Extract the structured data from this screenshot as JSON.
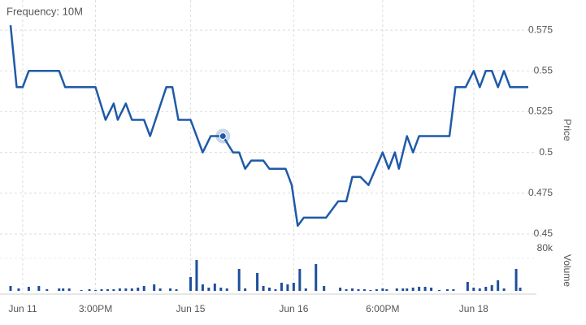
{
  "chart_data": [
    {
      "type": "line",
      "title": "Frequency: 10M",
      "y_label": "Price",
      "color": "#1f5aa8",
      "xlim": [
        0,
        128
      ],
      "ylim": [
        0.444,
        0.5875
      ],
      "yticks": [
        0.45,
        0.475,
        0.5,
        0.525,
        0.55,
        0.575
      ],
      "grid": true,
      "highlight_index": 21,
      "series": [
        {
          "name": "Price",
          "color": "#1f5aa8",
          "x": [
            0,
            1.5,
            3,
            4.5,
            12,
            13.5,
            21,
            23.5,
            25.5,
            26.5,
            28.5,
            30,
            33,
            34.5,
            38.5,
            40,
            41.5,
            44.5,
            47.5,
            49.5,
            52.5,
            52.5,
            55,
            56.5,
            58,
            59.5,
            62.5,
            64,
            68,
            69.5,
            71,
            72.5,
            78,
            81,
            83,
            84.5,
            86.5,
            88.5,
            92,
            93.5,
            95,
            96,
            98,
            99.5,
            101,
            108.5,
            110,
            112.5,
            114.5,
            116,
            117.5,
            119,
            120.5,
            122,
            123.5,
            128
          ],
          "values": [
            0.578,
            0.54,
            0.54,
            0.55,
            0.55,
            0.54,
            0.54,
            0.52,
            0.53,
            0.52,
            0.53,
            0.52,
            0.52,
            0.51,
            0.54,
            0.54,
            0.52,
            0.52,
            0.5,
            0.51,
            0.51,
            0.51,
            0.5,
            0.5,
            0.49,
            0.495,
            0.495,
            0.49,
            0.49,
            0.48,
            0.455,
            0.46,
            0.46,
            0.47,
            0.47,
            0.485,
            0.485,
            0.48,
            0.5,
            0.49,
            0.5,
            0.49,
            0.51,
            0.5,
            0.51,
            0.51,
            0.54,
            0.54,
            0.55,
            0.54,
            0.55,
            0.55,
            0.54,
            0.55,
            0.54,
            0.54
          ]
        }
      ]
    },
    {
      "type": "bar",
      "y_label": "Volume",
      "color": "#1d4f9c",
      "xlim": [
        0,
        128
      ],
      "ylim": [
        0,
        106000
      ],
      "yticks": [
        {
          "value": 80000,
          "label": "80k"
        }
      ],
      "xticks": [
        {
          "value": 3,
          "label": "Jun 11"
        },
        {
          "value": 21,
          "label": "3:00PM"
        },
        {
          "value": 44.5,
          "label": "Jun 15"
        },
        {
          "value": 70,
          "label": "Jun 16"
        },
        {
          "value": 92,
          "label": "6:00PM"
        },
        {
          "value": 114.5,
          "label": "Jun 18"
        }
      ],
      "series": [
        {
          "name": "Volume",
          "color": "#1d4f9c",
          "x": [
            0,
            2,
            4.5,
            7,
            9,
            12,
            13,
            14.5,
            17.5,
            19.5,
            21,
            22.5,
            24,
            25.5,
            27,
            28.5,
            30,
            31.5,
            33,
            35.5,
            37,
            39.5,
            41,
            44.5,
            46,
            47.5,
            49,
            50.5,
            52,
            53.5,
            56.5,
            58,
            61,
            62.5,
            64,
            65.5,
            67,
            68.5,
            70,
            71.5,
            73,
            75.5,
            77.5,
            81.5,
            83,
            84.5,
            86,
            87.5,
            89,
            90.5,
            92,
            93,
            95.5,
            97,
            98,
            99.5,
            101,
            102.5,
            104,
            106,
            108,
            109.5,
            113,
            114.5,
            116,
            117.5,
            119,
            120.5,
            122,
            125,
            126
          ],
          "values": [
            12000,
            6000,
            10000,
            12000,
            4000,
            6000,
            6000,
            6000,
            2000,
            4000,
            2000,
            4000,
            4000,
            4000,
            6000,
            6000,
            6000,
            8000,
            12000,
            16000,
            6000,
            6000,
            4000,
            34000,
            76000,
            16000,
            8000,
            18000,
            8000,
            6000,
            54000,
            6000,
            44000,
            12000,
            8000,
            4000,
            20000,
            16000,
            20000,
            54000,
            6000,
            66000,
            12000,
            8000,
            4000,
            6000,
            4000,
            4000,
            2000,
            4000,
            6000,
            4000,
            6000,
            6000,
            6000,
            8000,
            10000,
            10000,
            8000,
            2000,
            4000,
            4000,
            22000,
            8000,
            6000,
            10000,
            14000,
            26000,
            6000,
            54000,
            8000
          ]
        }
      ]
    }
  ]
}
